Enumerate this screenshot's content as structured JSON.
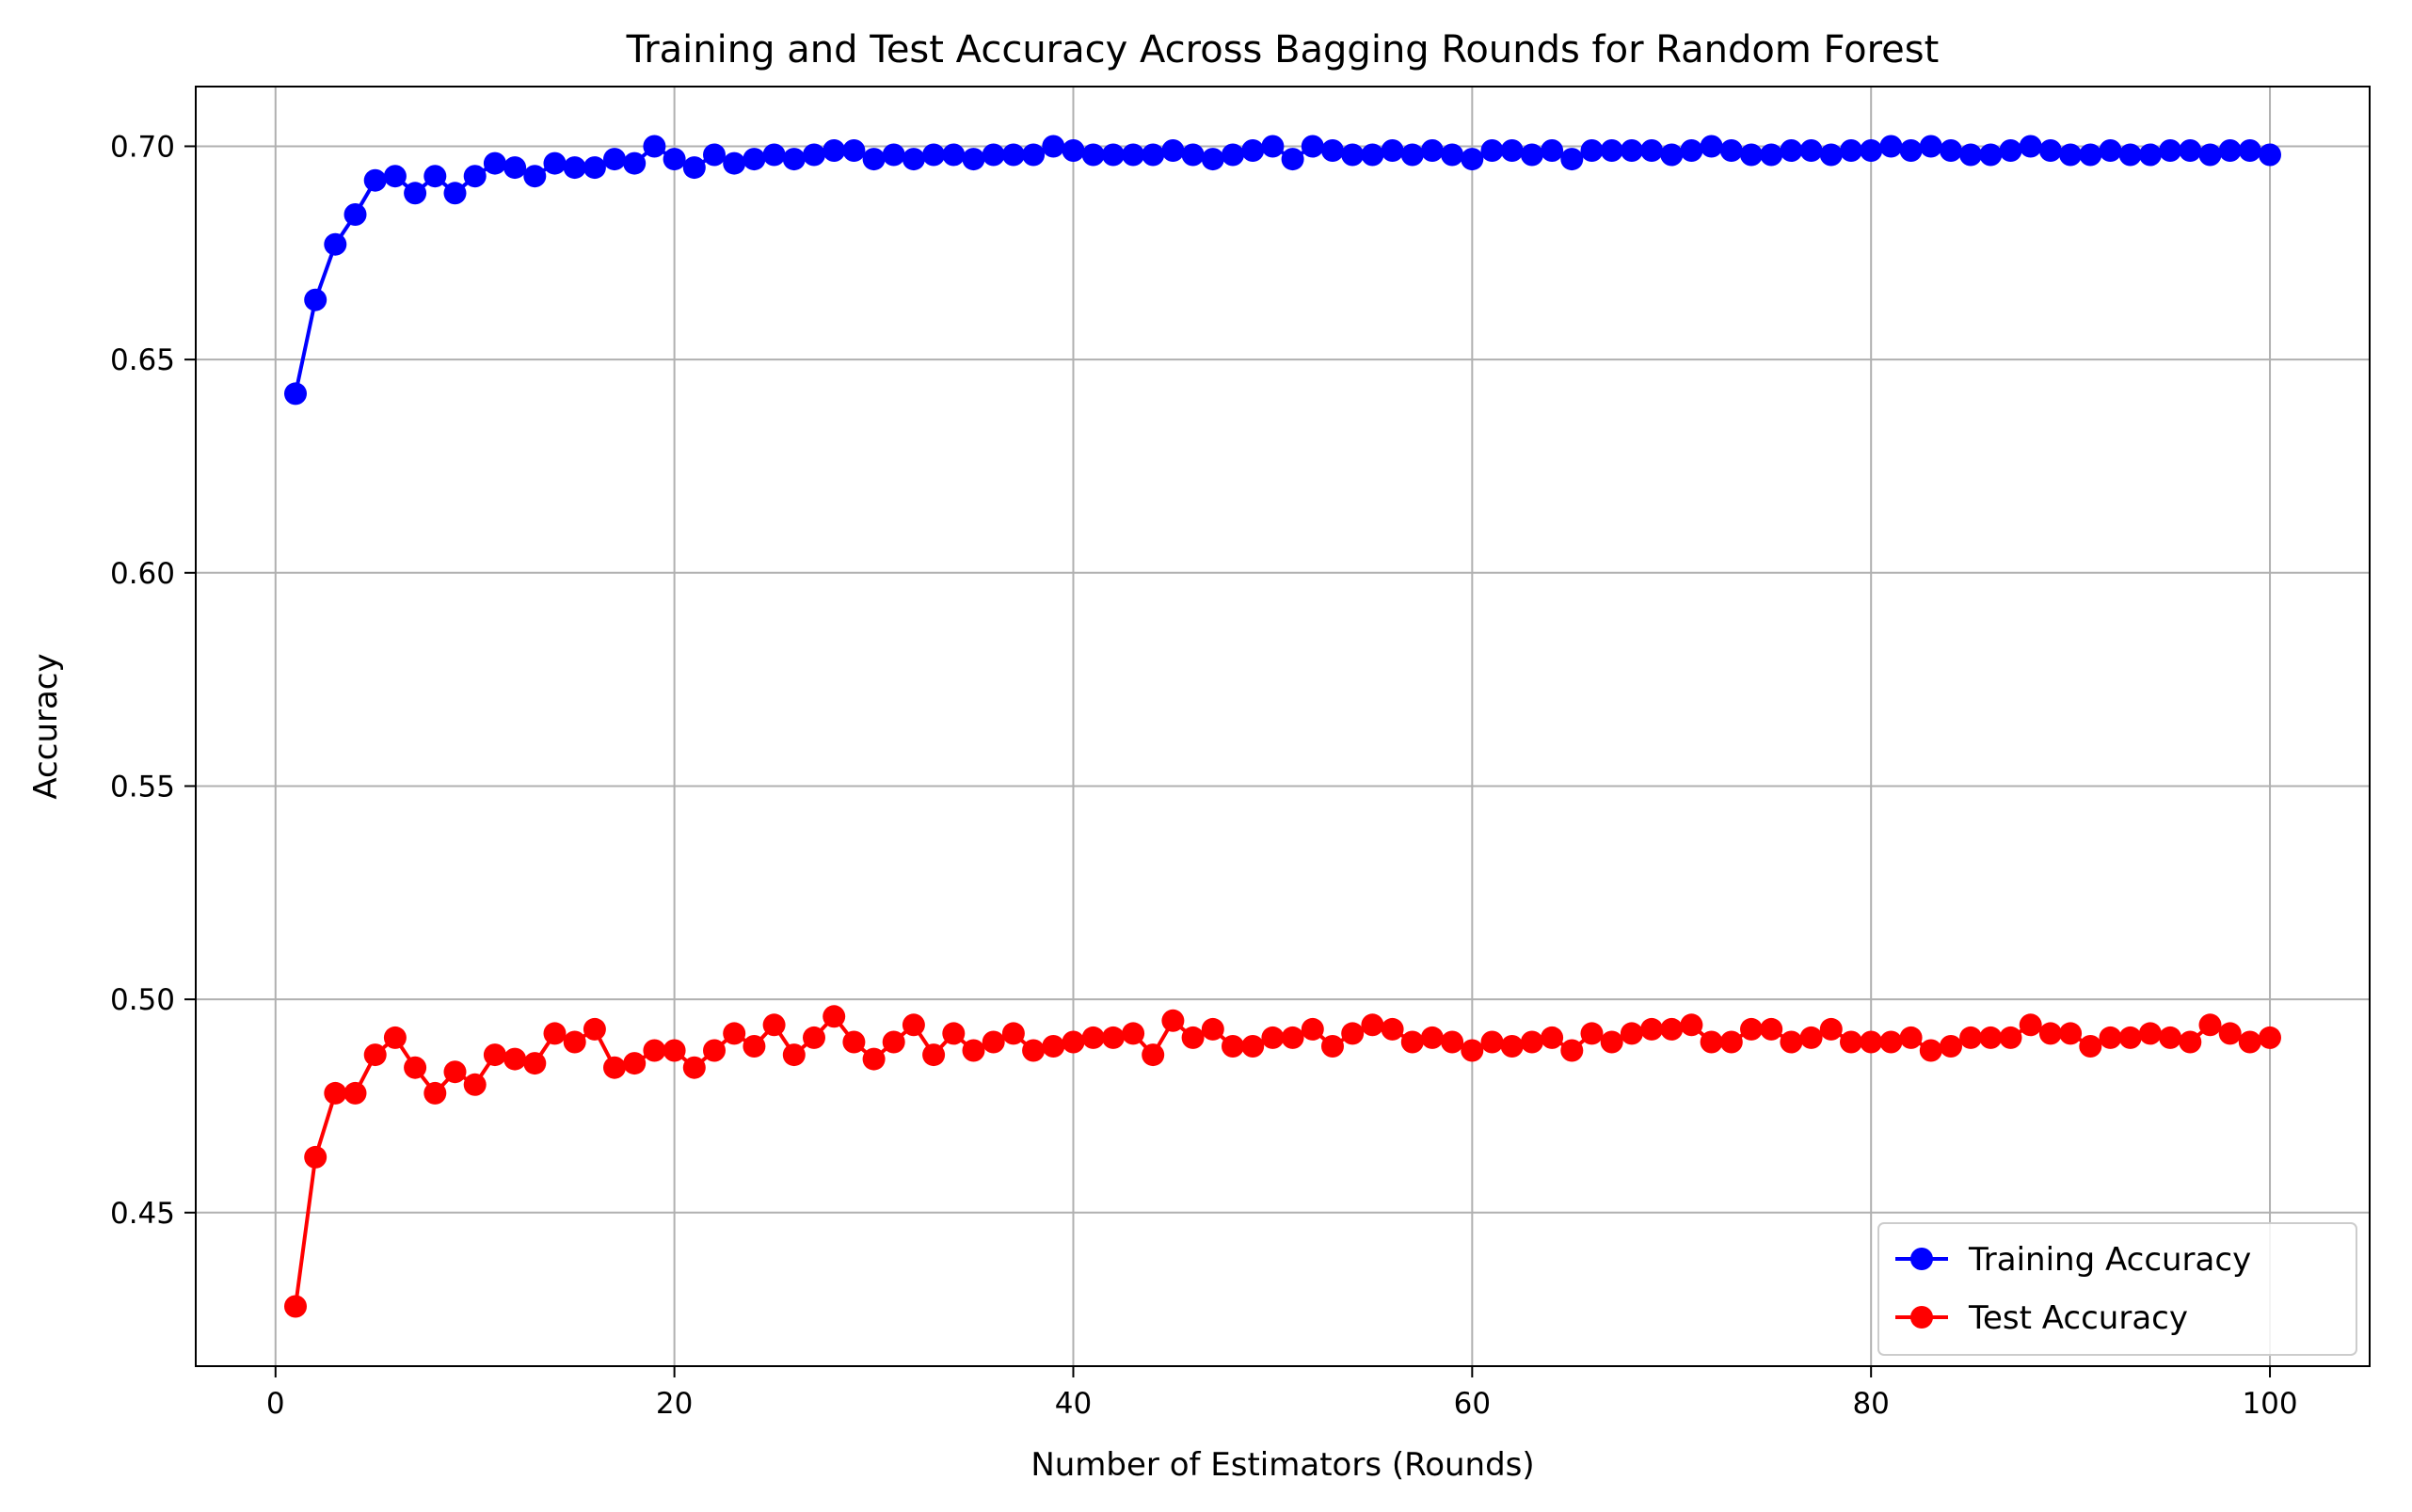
{
  "chart_data": {
    "type": "line",
    "title": "Training and Test Accuracy Across Bagging Rounds for Random Forest",
    "xlabel": "Number of Estimators (Rounds)",
    "ylabel": "Accuracy",
    "xlim": [
      -4,
      105
    ],
    "ylim": [
      0.414,
      0.714
    ],
    "xticks": [
      0,
      20,
      40,
      60,
      80,
      100
    ],
    "xtick_labels": [
      "0",
      "20",
      "40",
      "60",
      "80",
      "100"
    ],
    "yticks": [
      0.45,
      0.5,
      0.55,
      0.6,
      0.65,
      0.7
    ],
    "ytick_labels": [
      "0.45",
      "0.50",
      "0.55",
      "0.60",
      "0.65",
      "0.70"
    ],
    "grid": true,
    "legend_position": "lower-right",
    "x": [
      1,
      2,
      3,
      4,
      5,
      6,
      7,
      8,
      9,
      10,
      11,
      12,
      13,
      14,
      15,
      16,
      17,
      18,
      19,
      20,
      21,
      22,
      23,
      24,
      25,
      26,
      27,
      28,
      29,
      30,
      31,
      32,
      33,
      34,
      35,
      36,
      37,
      38,
      39,
      40,
      41,
      42,
      43,
      44,
      45,
      46,
      47,
      48,
      49,
      50,
      51,
      52,
      53,
      54,
      55,
      56,
      57,
      58,
      59,
      60,
      61,
      62,
      63,
      64,
      65,
      66,
      67,
      68,
      69,
      70,
      71,
      72,
      73,
      74,
      75,
      76,
      77,
      78,
      79,
      80,
      81,
      82,
      83,
      84,
      85,
      86,
      87,
      88,
      89,
      90,
      91,
      92,
      93,
      94,
      95,
      96,
      97,
      98,
      99,
      100
    ],
    "series": [
      {
        "name": "Training Accuracy",
        "color": "#0000ff",
        "values": [
          0.642,
          0.664,
          0.677,
          0.684,
          0.692,
          0.693,
          0.689,
          0.693,
          0.689,
          0.693,
          0.696,
          0.695,
          0.693,
          0.696,
          0.695,
          0.695,
          0.697,
          0.696,
          0.7,
          0.697,
          0.695,
          0.698,
          0.696,
          0.697,
          0.698,
          0.697,
          0.698,
          0.699,
          0.699,
          0.697,
          0.698,
          0.697,
          0.698,
          0.698,
          0.697,
          0.698,
          0.698,
          0.698,
          0.7,
          0.699,
          0.698,
          0.698,
          0.698,
          0.698,
          0.699,
          0.698,
          0.697,
          0.698,
          0.699,
          0.7,
          0.697,
          0.7,
          0.699,
          0.698,
          0.698,
          0.699,
          0.698,
          0.699,
          0.698,
          0.697,
          0.699,
          0.699,
          0.698,
          0.699,
          0.697,
          0.699,
          0.699,
          0.699,
          0.699,
          0.698,
          0.699,
          0.7,
          0.699,
          0.698,
          0.698,
          0.699,
          0.699,
          0.698,
          0.699,
          0.699,
          0.7,
          0.699,
          0.7,
          0.699,
          0.698,
          0.698,
          0.699,
          0.7,
          0.699,
          0.698,
          0.698,
          0.699,
          0.698,
          0.698,
          0.699,
          0.699,
          0.698,
          0.699,
          0.699,
          0.698
        ]
      },
      {
        "name": "Test Accuracy",
        "color": "#ff0000",
        "values": [
          0.428,
          0.463,
          0.478,
          0.478,
          0.487,
          0.491,
          0.484,
          0.478,
          0.483,
          0.48,
          0.487,
          0.486,
          0.485,
          0.492,
          0.49,
          0.493,
          0.484,
          0.485,
          0.488,
          0.488,
          0.484,
          0.488,
          0.492,
          0.489,
          0.494,
          0.487,
          0.491,
          0.496,
          0.49,
          0.486,
          0.49,
          0.494,
          0.487,
          0.492,
          0.488,
          0.49,
          0.492,
          0.488,
          0.489,
          0.49,
          0.491,
          0.491,
          0.492,
          0.487,
          0.495,
          0.491,
          0.493,
          0.489,
          0.489,
          0.491,
          0.491,
          0.493,
          0.489,
          0.492,
          0.494,
          0.493,
          0.49,
          0.491,
          0.49,
          0.488,
          0.49,
          0.489,
          0.49,
          0.491,
          0.488,
          0.492,
          0.49,
          0.492,
          0.493,
          0.493,
          0.494,
          0.49,
          0.49,
          0.493,
          0.493,
          0.49,
          0.491,
          0.493,
          0.49,
          0.49,
          0.49,
          0.491,
          0.488,
          0.489,
          0.491,
          0.491,
          0.491,
          0.494,
          0.492,
          0.492,
          0.489,
          0.491,
          0.491,
          0.492,
          0.491,
          0.49,
          0.494,
          0.492,
          0.49,
          0.491
        ]
      }
    ]
  }
}
